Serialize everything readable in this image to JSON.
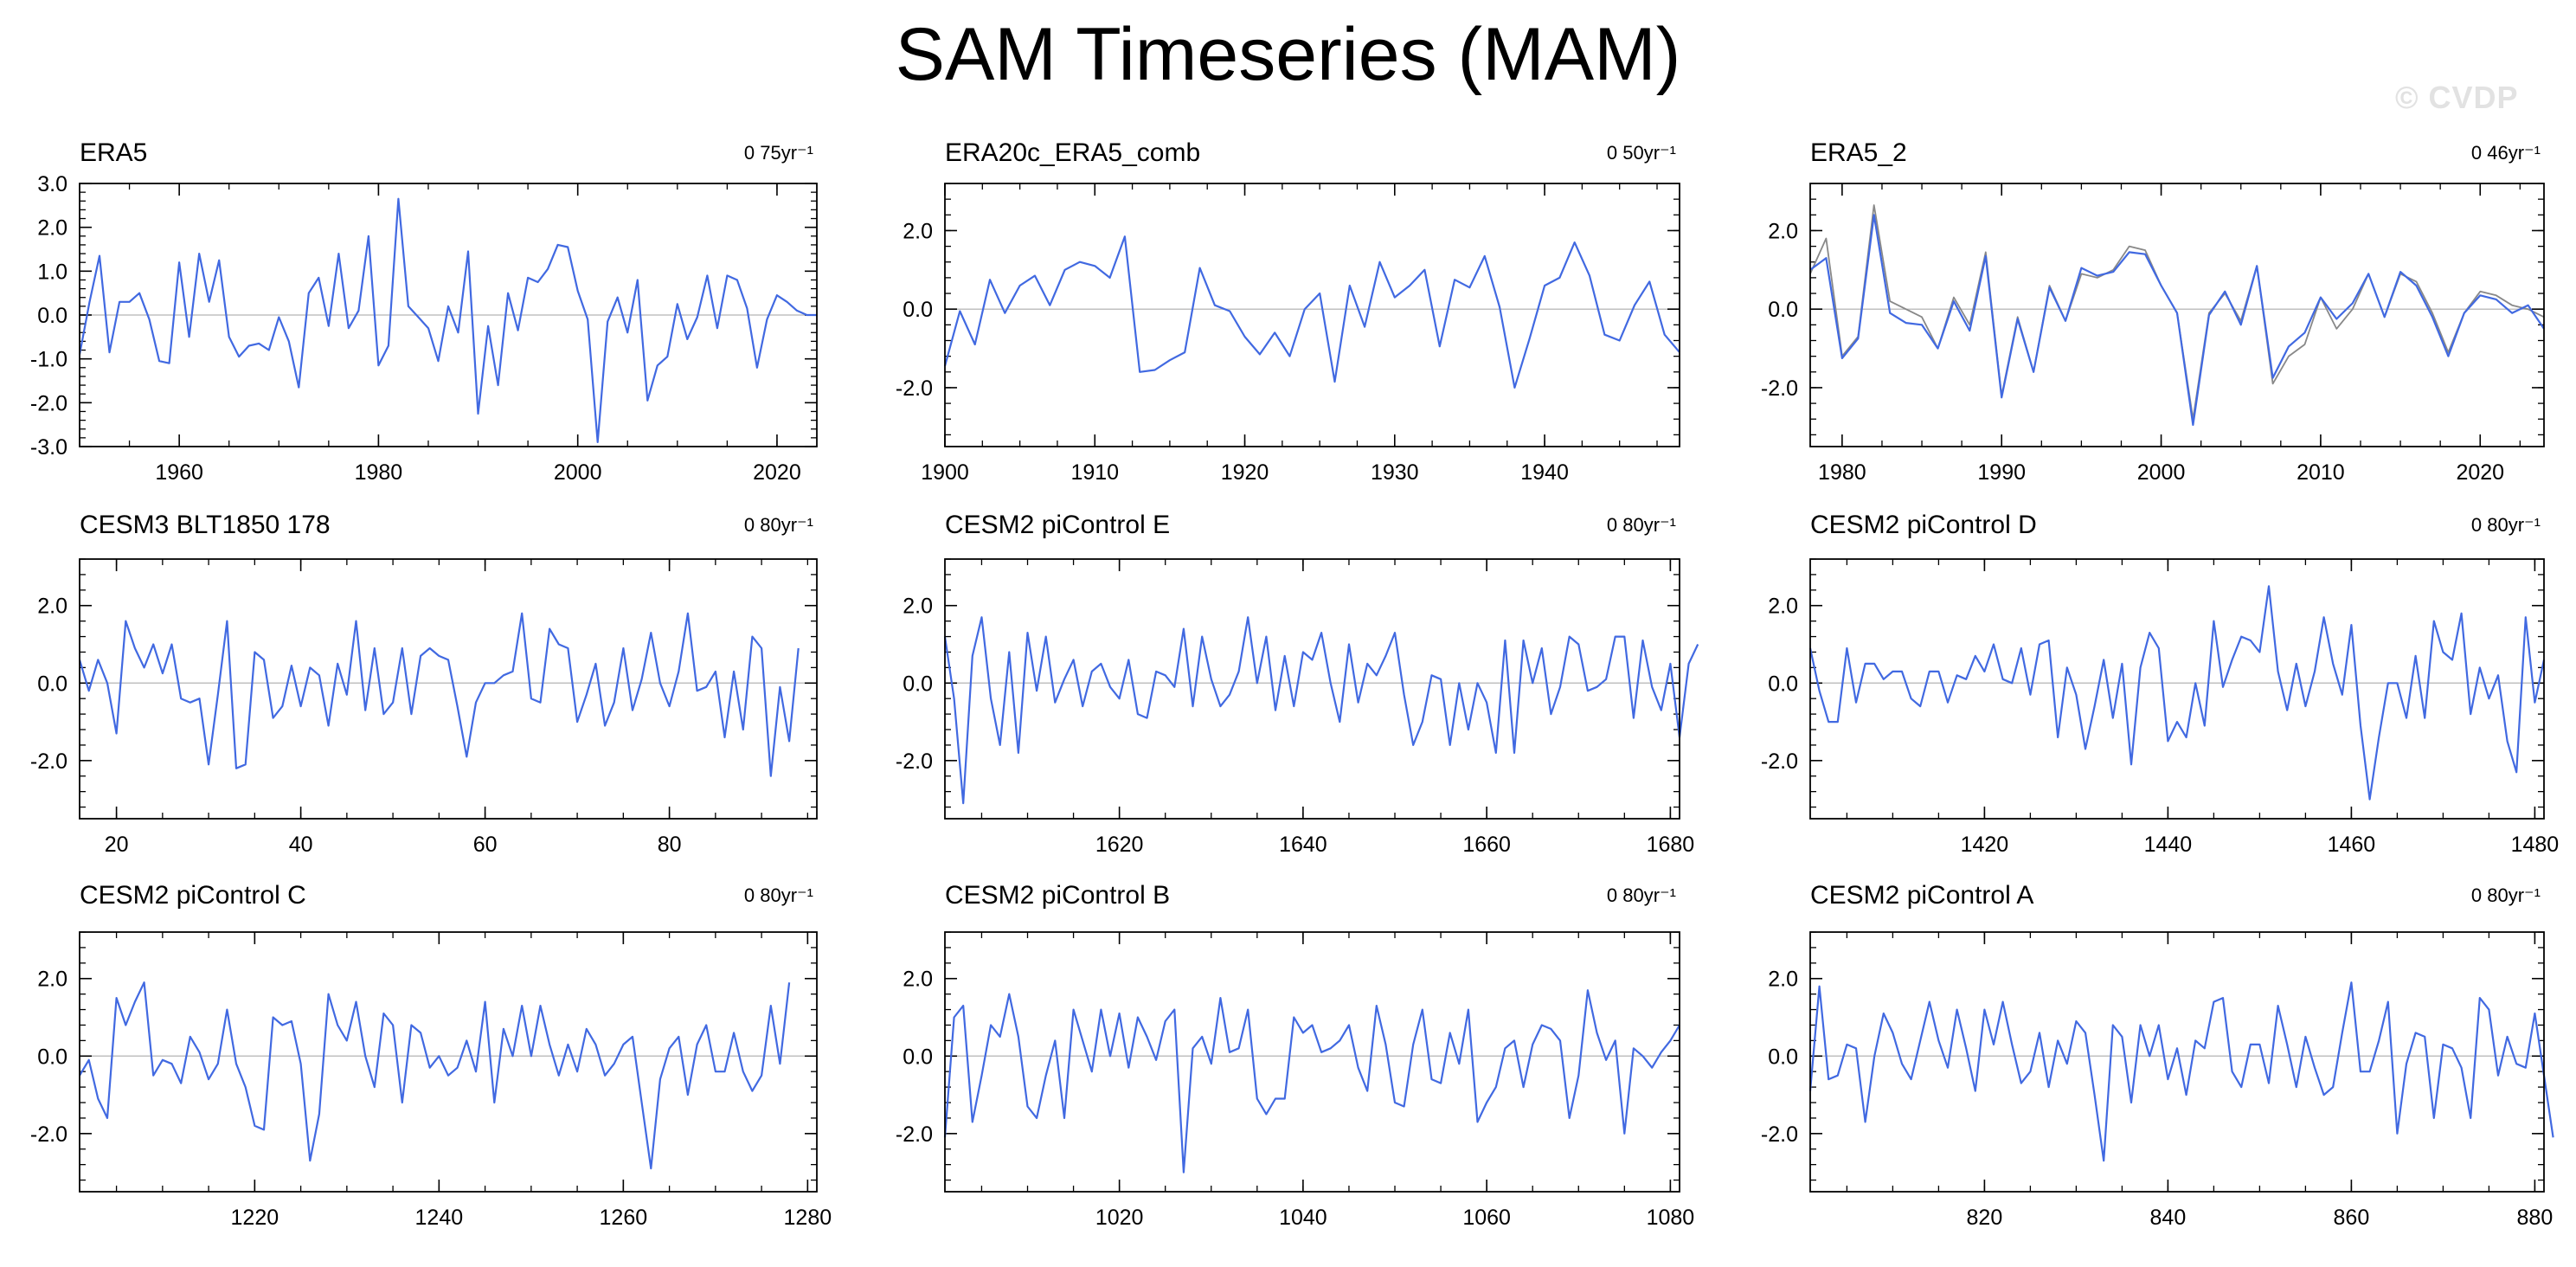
{
  "header": {
    "title": "SAM Timeseries (MAM)",
    "watermark": "© CVDP"
  },
  "chart_data": [
    {
      "type": "line",
      "title": "ERA5",
      "trend_label": "0 75yr⁻¹",
      "xlim": [
        1950,
        2024
      ],
      "ylim": [
        -3,
        3
      ],
      "xticks": [
        1960,
        1980,
        2000,
        2020
      ],
      "yticks": [
        -3.0,
        -2.0,
        -1.0,
        0.0,
        1.0,
        2.0,
        3.0
      ],
      "ytick_labels": [
        "-3.0",
        "-2.0",
        "-1.0",
        "0.0",
        "1.0",
        "2.0",
        "3.0"
      ],
      "series": [
        {
          "color": "#4169e1",
          "x_start": 1950,
          "step": 1,
          "values": [
            -0.9,
            0.3,
            1.35,
            -0.85,
            0.3,
            0.3,
            0.5,
            -0.1,
            -1.05,
            -1.1,
            1.2,
            -0.5,
            1.4,
            0.3,
            1.25,
            -0.5,
            -0.95,
            -0.7,
            -0.65,
            -0.8,
            -0.05,
            -0.6,
            -1.65,
            0.5,
            0.85,
            -0.25,
            1.4,
            -0.3,
            0.1,
            1.8,
            -1.15,
            -0.7,
            2.65,
            0.2,
            -0.05,
            -0.3,
            -1.05,
            0.2,
            -0.4,
            1.45,
            -2.25,
            -0.25,
            -1.6,
            0.5,
            -0.35,
            0.85,
            0.75,
            1.05,
            1.6,
            1.55,
            0.55,
            -0.1,
            -2.9,
            -0.15,
            0.4,
            -0.4,
            0.8,
            -1.95,
            -1.15,
            -0.95,
            0.25,
            -0.55,
            -0.05,
            0.9,
            -0.3,
            0.9,
            0.8,
            0.15,
            -1.2,
            -0.1,
            0.45,
            0.3,
            0.1,
            0.0,
            0.0
          ]
        }
      ]
    },
    {
      "type": "line",
      "title": "ERA20c_ERA5_comb",
      "trend_label": "0 50yr⁻¹",
      "xlim": [
        1900,
        1949
      ],
      "ylim": [
        -3.5,
        3.2
      ],
      "xticks": [
        1900,
        1910,
        1920,
        1930,
        1940
      ],
      "yticks": [
        -2.0,
        0.0,
        2.0
      ],
      "ytick_labels": [
        "-2.0",
        "0.0",
        "2.0"
      ],
      "series": [
        {
          "color": "#4169e1",
          "x_start": 1900,
          "step": 1,
          "values": [
            -1.45,
            -0.05,
            -0.9,
            0.75,
            -0.1,
            0.6,
            0.85,
            0.1,
            1.0,
            1.2,
            1.1,
            0.8,
            1.85,
            -1.6,
            -1.55,
            -1.3,
            -1.1,
            1.05,
            0.1,
            -0.05,
            -0.7,
            -1.15,
            -0.6,
            -1.2,
            0.0,
            0.4,
            -1.85,
            0.6,
            -0.45,
            1.2,
            0.3,
            0.6,
            1.0,
            -0.95,
            0.75,
            0.55,
            1.35,
            0.05,
            -2.0,
            -0.75,
            0.6,
            0.8,
            1.7,
            0.85,
            -0.65,
            -0.8,
            0.1,
            0.7,
            -0.65,
            -1.1
          ]
        }
      ]
    },
    {
      "type": "line",
      "title": "ERA5_2",
      "trend_label": "0 46yr⁻¹",
      "xlim": [
        1978,
        2024
      ],
      "ylim": [
        -3.5,
        3.2
      ],
      "xticks": [
        1980,
        1990,
        2000,
        2010,
        2020
      ],
      "yticks": [
        -2.0,
        0.0,
        2.0
      ],
      "ytick_labels": [
        "-2.0",
        "0.0",
        "2.0"
      ],
      "series": [
        {
          "color": "#888888",
          "x_start": 1978,
          "step": 1,
          "values": [
            0.9,
            1.8,
            -1.2,
            -0.7,
            2.65,
            0.2,
            0.0,
            -0.2,
            -1.0,
            0.3,
            -0.4,
            1.45,
            -2.2,
            -0.2,
            -1.6,
            0.6,
            -0.3,
            0.9,
            0.8,
            1.0,
            1.6,
            1.5,
            0.6,
            -0.1,
            -2.8,
            -0.1,
            0.4,
            -0.3,
            1.1,
            -1.9,
            -1.2,
            -0.9,
            0.3,
            -0.5,
            0.0,
            0.9,
            -0.2,
            0.9,
            0.7,
            -0.1,
            -1.1,
            -0.1,
            0.45,
            0.35,
            0.1,
            0.0,
            -0.2
          ]
        },
        {
          "color": "#4169e1",
          "x_start": 1978,
          "step": 1,
          "values": [
            1.0,
            1.3,
            -1.25,
            -0.75,
            2.4,
            -0.1,
            -0.35,
            -0.4,
            -1.0,
            0.2,
            -0.55,
            1.35,
            -2.25,
            -0.25,
            -1.6,
            0.55,
            -0.3,
            1.05,
            0.85,
            0.95,
            1.45,
            1.4,
            0.6,
            -0.1,
            -2.95,
            -0.15,
            0.45,
            -0.4,
            1.1,
            -1.75,
            -0.95,
            -0.6,
            0.3,
            -0.25,
            0.15,
            0.9,
            -0.2,
            0.95,
            0.6,
            -0.2,
            -1.2,
            -0.1,
            0.35,
            0.25,
            -0.1,
            0.1,
            -0.5
          ]
        }
      ]
    },
    {
      "type": "line",
      "title": "CESM3 BLT1850 178",
      "trend_label": "0 80yr⁻¹",
      "xlim": [
        16,
        96
      ],
      "ylim": [
        -3.5,
        3.2
      ],
      "xticks": [
        20,
        40,
        60,
        80
      ],
      "yticks": [
        -2.0,
        0.0,
        2.0
      ],
      "ytick_labels": [
        "-2.0",
        "0.0",
        "2.0"
      ],
      "series": [
        {
          "color": "#4169e1",
          "x_start": 16,
          "step": 1,
          "values": [
            0.6,
            -0.2,
            0.6,
            0.0,
            -1.3,
            1.6,
            0.9,
            0.4,
            1.0,
            0.25,
            1.0,
            -0.4,
            -0.5,
            -0.4,
            -2.1,
            -0.3,
            1.6,
            -2.2,
            -2.1,
            0.8,
            0.6,
            -0.9,
            -0.6,
            0.45,
            -0.6,
            0.4,
            0.2,
            -1.1,
            0.5,
            -0.3,
            1.6,
            -0.7,
            0.9,
            -0.8,
            -0.5,
            0.9,
            -0.8,
            0.7,
            0.9,
            0.7,
            0.6,
            -0.6,
            -1.9,
            -0.5,
            0.0,
            0.0,
            0.2,
            0.3,
            1.8,
            -0.4,
            -0.5,
            1.4,
            1.0,
            0.9,
            -1.0,
            -0.3,
            0.5,
            -1.1,
            -0.5,
            0.9,
            -0.7,
            0.1,
            1.3,
            0.0,
            -0.6,
            0.3,
            1.8,
            -0.2,
            -0.1,
            0.3,
            -1.4,
            0.3,
            -1.2,
            1.2,
            0.9,
            -2.4,
            -0.1,
            -1.5,
            0.9
          ]
        }
      ]
    },
    {
      "type": "line",
      "title": "CESM2 piControl E",
      "trend_label": "0 80yr⁻¹",
      "xlim": [
        1601,
        1681
      ],
      "ylim": [
        -3.5,
        3.2
      ],
      "xticks": [
        1620,
        1640,
        1660,
        1680
      ],
      "yticks": [
        -2.0,
        0.0,
        2.0
      ],
      "ytick_labels": [
        "-2.0",
        "0.0",
        "2.0"
      ],
      "series": [
        {
          "color": "#4169e1",
          "x_start": 1601,
          "step": 1,
          "values": [
            1.2,
            -0.4,
            -3.1,
            0.7,
            1.7,
            -0.4,
            -1.6,
            0.8,
            -1.8,
            1.3,
            -0.2,
            1.2,
            -0.5,
            0.1,
            0.6,
            -0.6,
            0.3,
            0.5,
            -0.1,
            -0.4,
            0.6,
            -0.8,
            -0.9,
            0.3,
            0.2,
            -0.1,
            1.4,
            -0.6,
            1.2,
            0.1,
            -0.6,
            -0.3,
            0.3,
            1.7,
            0.0,
            1.2,
            -0.7,
            0.7,
            -0.6,
            0.8,
            0.6,
            1.3,
            0.0,
            -1.0,
            1.0,
            -0.5,
            0.5,
            0.2,
            0.7,
            1.3,
            -0.3,
            -1.6,
            -1.0,
            0.2,
            0.1,
            -1.6,
            0.0,
            -1.2,
            0.0,
            -0.5,
            -1.8,
            1.1,
            -1.8,
            1.1,
            0.0,
            0.9,
            -0.8,
            -0.1,
            1.2,
            1.0,
            -0.2,
            -0.1,
            0.1,
            1.2,
            1.2,
            -0.9,
            1.1,
            -0.1,
            -0.7,
            0.5,
            -1.4,
            0.5,
            1.0
          ]
        }
      ]
    },
    {
      "type": "line",
      "title": "CESM2 piControl D",
      "trend_label": "0 80yr⁻¹",
      "xlim": [
        1401,
        1481
      ],
      "ylim": [
        -3.5,
        3.2
      ],
      "xticks": [
        1420,
        1440,
        1460,
        1480
      ],
      "yticks": [
        -2.0,
        0.0,
        2.0
      ],
      "ytick_labels": [
        "-2.0",
        "0.0",
        "2.0"
      ],
      "series": [
        {
          "color": "#4169e1",
          "x_start": 1401,
          "step": 1,
          "values": [
            0.9,
            -0.2,
            -1.0,
            -1.0,
            0.9,
            -0.5,
            0.5,
            0.5,
            0.1,
            0.3,
            0.3,
            -0.4,
            -0.6,
            0.3,
            0.3,
            -0.5,
            0.2,
            0.1,
            0.7,
            0.3,
            1.0,
            0.1,
            0.0,
            0.9,
            -0.3,
            1.0,
            1.1,
            -1.4,
            0.4,
            -0.3,
            -1.7,
            -0.6,
            0.6,
            -0.9,
            0.5,
            -2.1,
            0.4,
            1.3,
            0.9,
            -1.5,
            -1.0,
            -1.4,
            0.0,
            -1.1,
            1.6,
            -0.1,
            0.6,
            1.2,
            1.1,
            0.8,
            2.5,
            0.3,
            -0.7,
            0.5,
            -0.6,
            0.3,
            1.7,
            0.5,
            -0.3,
            1.5,
            -1.1,
            -3.0,
            -1.4,
            0.0,
            0.0,
            -0.9,
            0.7,
            -0.9,
            1.6,
            0.8,
            0.6,
            1.8,
            -0.8,
            0.4,
            -0.4,
            0.2,
            -1.5,
            -2.3,
            1.7,
            -0.5,
            0.6
          ]
        }
      ]
    },
    {
      "type": "line",
      "title": "CESM2 piControl C",
      "trend_label": "0 80yr⁻¹",
      "xlim": [
        1201,
        1281
      ],
      "ylim": [
        -3.5,
        3.2
      ],
      "xticks": [
        1220,
        1240,
        1260,
        1280
      ],
      "yticks": [
        -2.0,
        0.0,
        2.0
      ],
      "ytick_labels": [
        "-2.0",
        "0.0",
        "2.0"
      ],
      "series": [
        {
          "color": "#4169e1",
          "x_start": 1201,
          "step": 1,
          "values": [
            -0.5,
            -0.1,
            -1.1,
            -1.6,
            1.5,
            0.8,
            1.4,
            1.9,
            -0.5,
            -0.1,
            -0.2,
            -0.7,
            0.5,
            0.1,
            -0.6,
            -0.2,
            1.2,
            -0.2,
            -0.8,
            -1.8,
            -1.9,
            1.0,
            0.8,
            0.9,
            -0.2,
            -2.7,
            -1.5,
            1.6,
            0.8,
            0.4,
            1.4,
            0.0,
            -0.8,
            1.1,
            0.8,
            -1.2,
            0.8,
            0.6,
            -0.3,
            0.0,
            -0.5,
            -0.3,
            0.4,
            -0.4,
            1.4,
            -1.2,
            0.7,
            0.0,
            1.3,
            0.0,
            1.3,
            0.3,
            -0.5,
            0.3,
            -0.4,
            0.7,
            0.3,
            -0.5,
            -0.2,
            0.3,
            0.5,
            -1.2,
            -2.9,
            -0.6,
            0.2,
            0.5,
            -1.0,
            0.3,
            0.8,
            -0.4,
            -0.4,
            0.6,
            -0.4,
            -0.9,
            -0.5,
            1.3,
            -0.2,
            1.9
          ]
        }
      ]
    },
    {
      "type": "line",
      "title": "CESM2 piControl B",
      "trend_label": "0 80yr⁻¹",
      "xlim": [
        1001,
        1081
      ],
      "ylim": [
        -3.5,
        3.2
      ],
      "xticks": [
        1020,
        1040,
        1060,
        1080
      ],
      "yticks": [
        -2.0,
        0.0,
        2.0
      ],
      "ytick_labels": [
        "-2.0",
        "0.0",
        "2.0"
      ],
      "series": [
        {
          "color": "#4169e1",
          "x_start": 1001,
          "step": 1,
          "values": [
            -2.1,
            1.0,
            1.3,
            -1.7,
            -0.5,
            0.8,
            0.5,
            1.6,
            0.5,
            -1.3,
            -1.6,
            -0.5,
            0.4,
            -1.6,
            1.2,
            0.4,
            -0.4,
            1.2,
            0.0,
            1.1,
            -0.3,
            1.0,
            0.5,
            -0.1,
            0.9,
            1.2,
            -3.0,
            0.2,
            0.5,
            -0.2,
            1.5,
            0.1,
            0.2,
            1.2,
            -1.1,
            -1.5,
            -1.1,
            -1.1,
            1.0,
            0.6,
            0.8,
            0.1,
            0.2,
            0.4,
            0.8,
            -0.3,
            -0.9,
            1.3,
            0.3,
            -1.2,
            -1.3,
            0.3,
            1.2,
            -0.6,
            -0.7,
            0.6,
            -0.2,
            1.2,
            -1.7,
            -1.2,
            -0.8,
            0.2,
            0.4,
            -0.8,
            0.3,
            0.8,
            0.7,
            0.4,
            -1.6,
            -0.5,
            1.7,
            0.6,
            -0.1,
            0.4,
            -2.0,
            0.2,
            0.0,
            -0.3,
            0.1,
            0.4,
            0.8
          ]
        }
      ]
    },
    {
      "type": "line",
      "title": "CESM2 piControl A",
      "trend_label": "0 80yr⁻¹",
      "xlim": [
        801,
        881
      ],
      "ylim": [
        -3.5,
        3.2
      ],
      "xticks": [
        820,
        840,
        860,
        880
      ],
      "yticks": [
        -2.0,
        0.0,
        2.0
      ],
      "ytick_labels": [
        "-2.0",
        "0.0",
        "2.0"
      ],
      "series": [
        {
          "color": "#4169e1",
          "x_start": 801,
          "step": 1,
          "values": [
            -0.9,
            1.8,
            -0.6,
            -0.5,
            0.3,
            0.2,
            -1.7,
            0.0,
            1.1,
            0.6,
            -0.2,
            -0.6,
            0.4,
            1.4,
            0.4,
            -0.3,
            1.2,
            0.2,
            -0.9,
            1.2,
            0.3,
            1.4,
            0.3,
            -0.7,
            -0.4,
            0.6,
            -0.8,
            0.4,
            -0.2,
            0.9,
            0.6,
            -1.0,
            -2.7,
            0.8,
            0.5,
            -1.2,
            0.8,
            0.0,
            0.8,
            -0.6,
            0.2,
            -1.0,
            0.4,
            0.2,
            1.4,
            1.5,
            -0.4,
            -0.8,
            0.3,
            0.3,
            -0.7,
            1.3,
            0.3,
            -0.8,
            0.5,
            -0.3,
            -1.0,
            -0.8,
            0.6,
            1.9,
            -0.4,
            -0.4,
            0.4,
            1.4,
            -2.0,
            -0.2,
            0.6,
            0.5,
            -1.6,
            0.3,
            0.2,
            -0.3,
            -1.6,
            1.5,
            1.2,
            -0.5,
            0.5,
            -0.2,
            -0.3,
            1.1,
            -0.5,
            -2.1
          ]
        }
      ]
    }
  ]
}
